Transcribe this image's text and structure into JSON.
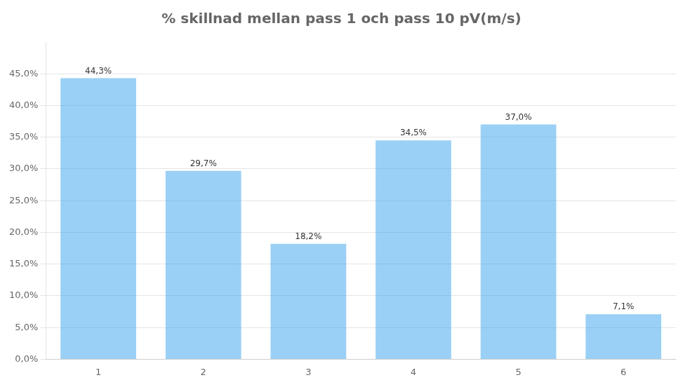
{
  "chart_data": {
    "type": "bar",
    "title": "% skillnad mellan pass 1 och pass 10 pV(m/s)",
    "categories": [
      "1",
      "2",
      "3",
      "4",
      "5",
      "6"
    ],
    "values": [
      0.443,
      0.297,
      0.182,
      0.345,
      0.37,
      0.071
    ],
    "value_labels": [
      "44,3%",
      "29,7%",
      "18,2%",
      "34,5%",
      "37,0%",
      "7,1%"
    ],
    "data_labels": true,
    "ylim": [
      0,
      0.5
    ],
    "yticks": [
      {
        "value": 0.0,
        "label": "0,0%"
      },
      {
        "value": 0.05,
        "label": "5,0%"
      },
      {
        "value": 0.1,
        "label": "10,0%"
      },
      {
        "value": 0.15,
        "label": "15,0%"
      },
      {
        "value": 0.2,
        "label": "20,0%"
      },
      {
        "value": 0.25,
        "label": "25,0%"
      },
      {
        "value": 0.3,
        "label": "30,0%"
      },
      {
        "value": 0.35,
        "label": "35,0%"
      },
      {
        "value": 0.4,
        "label": "40,0%"
      },
      {
        "value": 0.45,
        "label": "45,0%"
      }
    ],
    "grid": true
  }
}
